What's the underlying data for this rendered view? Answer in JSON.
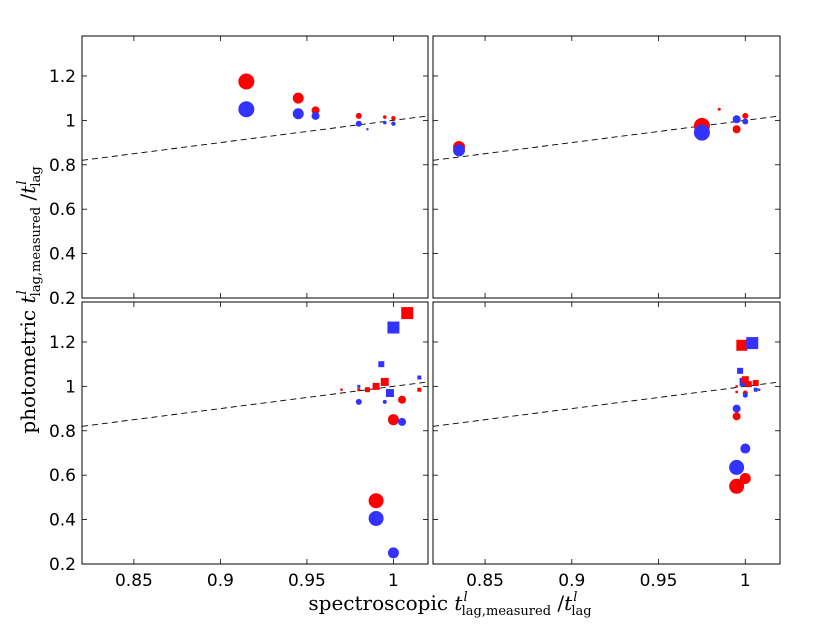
{
  "chart_data": {
    "type": "scatter",
    "grid": false,
    "xlabel": {
      "prefix": "spectroscopic ",
      "var": "t",
      "sup": "l",
      "sub": "lag,measured",
      "mid": " /",
      "var2": "t",
      "sup2": "l",
      "sub2": "lag"
    },
    "ylabel": {
      "prefix": "photometric ",
      "var": "t",
      "sup": "l",
      "sub": "lag,measured",
      "mid": " /",
      "var2": "t",
      "sup2": "l",
      "sub2": "lag"
    },
    "xlim": [
      0.82,
      1.02
    ],
    "ylim": [
      0.2,
      1.38
    ],
    "xticks": [
      "0.85",
      "0.9",
      "0.95",
      "1"
    ],
    "yticks": [
      "0.2",
      "0.4",
      "0.6",
      "0.8",
      "1",
      "1.2"
    ],
    "reference_line": {
      "style": "dashed",
      "points": [
        [
          0.82,
          0.82
        ],
        [
          1.02,
          1.02
        ]
      ]
    },
    "colors": {
      "red": "#ff0000",
      "blue": "#3333ff"
    },
    "panels": [
      {
        "id": "top-left",
        "points": [
          {
            "x": 0.915,
            "y": 1.175,
            "s": 8,
            "c": "red",
            "m": "circle"
          },
          {
            "x": 0.915,
            "y": 1.05,
            "s": 8,
            "c": "blue",
            "m": "circle"
          },
          {
            "x": 0.945,
            "y": 1.1,
            "s": 5.5,
            "c": "red",
            "m": "circle"
          },
          {
            "x": 0.945,
            "y": 1.03,
            "s": 5.5,
            "c": "blue",
            "m": "circle"
          },
          {
            "x": 0.955,
            "y": 1.045,
            "s": 4,
            "c": "red",
            "m": "circle"
          },
          {
            "x": 0.955,
            "y": 1.02,
            "s": 4,
            "c": "blue",
            "m": "circle"
          },
          {
            "x": 0.98,
            "y": 1.02,
            "s": 3,
            "c": "red",
            "m": "circle"
          },
          {
            "x": 0.98,
            "y": 0.985,
            "s": 3,
            "c": "blue",
            "m": "circle"
          },
          {
            "x": 0.985,
            "y": 0.96,
            "s": 1.2,
            "c": "blue",
            "m": "circle"
          },
          {
            "x": 0.995,
            "y": 1.015,
            "s": 1.8,
            "c": "red",
            "m": "circle"
          },
          {
            "x": 0.995,
            "y": 0.99,
            "s": 1.8,
            "c": "blue",
            "m": "circle"
          },
          {
            "x": 1.0,
            "y": 1.01,
            "s": 2.2,
            "c": "red",
            "m": "circle"
          },
          {
            "x": 1.0,
            "y": 0.985,
            "s": 2.2,
            "c": "blue",
            "m": "circle"
          }
        ]
      },
      {
        "id": "top-right",
        "points": [
          {
            "x": 0.835,
            "y": 0.88,
            "s": 6,
            "c": "red",
            "m": "circle"
          },
          {
            "x": 0.835,
            "y": 0.865,
            "s": 6,
            "c": "blue",
            "m": "circle"
          },
          {
            "x": 0.975,
            "y": 0.975,
            "s": 8,
            "c": "red",
            "m": "circle"
          },
          {
            "x": 0.975,
            "y": 0.945,
            "s": 8,
            "c": "blue",
            "m": "circle"
          },
          {
            "x": 0.985,
            "y": 1.05,
            "s": 1.5,
            "c": "red",
            "m": "circle"
          },
          {
            "x": 0.995,
            "y": 1.005,
            "s": 4,
            "c": "blue",
            "m": "circle"
          },
          {
            "x": 0.995,
            "y": 0.96,
            "s": 4,
            "c": "red",
            "m": "circle"
          },
          {
            "x": 1.0,
            "y": 1.02,
            "s": 3,
            "c": "red",
            "m": "circle"
          },
          {
            "x": 1.0,
            "y": 0.995,
            "s": 3,
            "c": "blue",
            "m": "circle"
          }
        ]
      },
      {
        "id": "bottom-left",
        "points": [
          {
            "x": 0.98,
            "y": 0.93,
            "s": 3,
            "c": "blue",
            "m": "circle"
          },
          {
            "x": 0.98,
            "y": 1.0,
            "s": 1.5,
            "c": "blue",
            "m": "square"
          },
          {
            "x": 0.98,
            "y": 0.985,
            "s": 1.5,
            "c": "red",
            "m": "square"
          },
          {
            "x": 0.97,
            "y": 0.985,
            "s": 1.2,
            "c": "red",
            "m": "square"
          },
          {
            "x": 0.985,
            "y": 0.985,
            "s": 2.5,
            "c": "red",
            "m": "square"
          },
          {
            "x": 0.99,
            "y": 1.0,
            "s": 3.5,
            "c": "red",
            "m": "square"
          },
          {
            "x": 0.995,
            "y": 1.02,
            "s": 4,
            "c": "red",
            "m": "square"
          },
          {
            "x": 0.993,
            "y": 1.1,
            "s": 3,
            "c": "blue",
            "m": "square"
          },
          {
            "x": 0.995,
            "y": 0.93,
            "s": 2,
            "c": "blue",
            "m": "circle"
          },
          {
            "x": 0.998,
            "y": 0.97,
            "s": 4,
            "c": "blue",
            "m": "square"
          },
          {
            "x": 1.0,
            "y": 1.265,
            "s": 6,
            "c": "blue",
            "m": "square"
          },
          {
            "x": 1.008,
            "y": 1.33,
            "s": 6,
            "c": "red",
            "m": "square"
          },
          {
            "x": 1.0,
            "y": 0.85,
            "s": 5.5,
            "c": "red",
            "m": "circle"
          },
          {
            "x": 1.005,
            "y": 0.94,
            "s": 4,
            "c": "red",
            "m": "circle"
          },
          {
            "x": 1.005,
            "y": 0.84,
            "s": 4,
            "c": "blue",
            "m": "circle"
          },
          {
            "x": 0.99,
            "y": 0.485,
            "s": 7.5,
            "c": "red",
            "m": "circle"
          },
          {
            "x": 0.99,
            "y": 0.405,
            "s": 7.5,
            "c": "blue",
            "m": "circle"
          },
          {
            "x": 1.0,
            "y": 0.25,
            "s": 5.5,
            "c": "blue",
            "m": "circle"
          },
          {
            "x": 1.015,
            "y": 1.04,
            "s": 2,
            "c": "blue",
            "m": "square"
          },
          {
            "x": 1.015,
            "y": 0.985,
            "s": 2,
            "c": "red",
            "m": "square"
          }
        ]
      },
      {
        "id": "bottom-right",
        "points": [
          {
            "x": 0.995,
            "y": 1.0,
            "s": 1.2,
            "c": "red",
            "m": "square"
          },
          {
            "x": 0.995,
            "y": 0.975,
            "s": 1.2,
            "c": "red",
            "m": "square"
          },
          {
            "x": 0.995,
            "y": 0.9,
            "s": 4,
            "c": "blue",
            "m": "circle"
          },
          {
            "x": 0.995,
            "y": 0.865,
            "s": 4,
            "c": "red",
            "m": "circle"
          },
          {
            "x": 0.997,
            "y": 1.07,
            "s": 3,
            "c": "blue",
            "m": "square"
          },
          {
            "x": 0.998,
            "y": 1.185,
            "s": 5.5,
            "c": "red",
            "m": "square"
          },
          {
            "x": 0.999,
            "y": 1.02,
            "s": 4,
            "c": "blue",
            "m": "square"
          },
          {
            "x": 1.0,
            "y": 1.03,
            "s": 3.5,
            "c": "red",
            "m": "square"
          },
          {
            "x": 1.0,
            "y": 0.97,
            "s": 2.5,
            "c": "red",
            "m": "circle"
          },
          {
            "x": 1.0,
            "y": 0.96,
            "s": 2.5,
            "c": "blue",
            "m": "circle"
          },
          {
            "x": 1.002,
            "y": 1.01,
            "s": 3,
            "c": "red",
            "m": "square"
          },
          {
            "x": 1.004,
            "y": 1.195,
            "s": 6,
            "c": "blue",
            "m": "square"
          },
          {
            "x": 1.006,
            "y": 1.015,
            "s": 3,
            "c": "red",
            "m": "square"
          },
          {
            "x": 1.006,
            "y": 0.985,
            "s": 2,
            "c": "blue",
            "m": "square"
          },
          {
            "x": 1.008,
            "y": 0.985,
            "s": 1.2,
            "c": "blue",
            "m": "square"
          },
          {
            "x": 1.0,
            "y": 0.72,
            "s": 5,
            "c": "blue",
            "m": "circle"
          },
          {
            "x": 0.995,
            "y": 0.635,
            "s": 7.5,
            "c": "blue",
            "m": "circle"
          },
          {
            "x": 1.0,
            "y": 0.585,
            "s": 5.5,
            "c": "red",
            "m": "circle"
          },
          {
            "x": 0.995,
            "y": 0.55,
            "s": 7.5,
            "c": "red",
            "m": "circle"
          }
        ]
      }
    ]
  }
}
